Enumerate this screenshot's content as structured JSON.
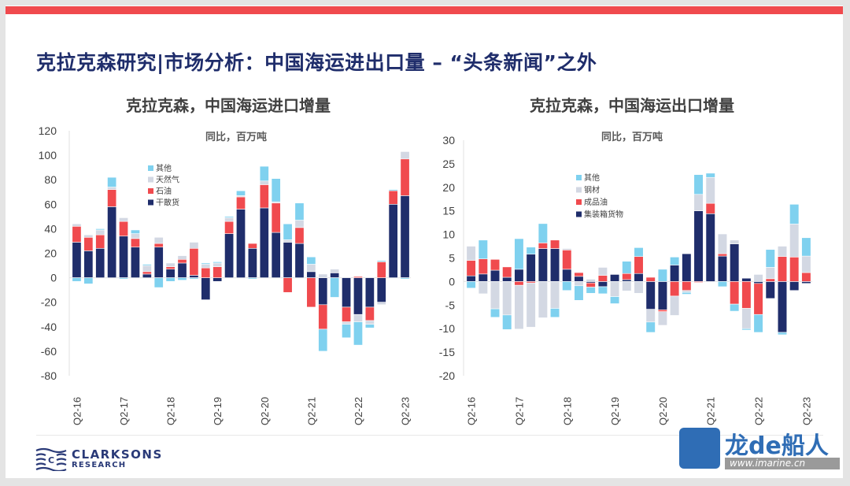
{
  "slide": {
    "title": "克拉克森研究|市场分析：中国海运进出口量 – “头条新闻”之外",
    "logo_text": "CLARKSONS",
    "logo_subtext": "RESEARCH",
    "watermark_text": "龙de船人",
    "watermark_url": "www.imarine.cn"
  },
  "colors": {
    "brand": "#1f2d6b",
    "accent_red": "#f04a4e",
    "navy": "#1f2d6b",
    "red": "#f04a4e",
    "grey": "#d3d8e3",
    "cyan": "#7fd1ef"
  },
  "chart_data": [
    {
      "type": "bar",
      "stacked": true,
      "title": "克拉克森，中国海运进口增量",
      "subtitle": "同比，百万吨",
      "ylim": [
        -80,
        120
      ],
      "yticks": [
        120,
        100,
        80,
        60,
        40,
        20,
        0,
        -20,
        -40,
        -60,
        -80
      ],
      "xtick_labels": [
        "Q2-16",
        "Q2-17",
        "Q2-18",
        "Q2-19",
        "Q2-20",
        "Q2-21",
        "Q2-22",
        "Q2-23"
      ],
      "legend_position": "upper-left-center",
      "grid": false,
      "series": [
        {
          "name": "干散货",
          "color": "#1f2d6b",
          "values": [
            29,
            22,
            24,
            58,
            34,
            25,
            3,
            25,
            7,
            12,
            2,
            -18,
            -3,
            36,
            56,
            24,
            57,
            37,
            29,
            28,
            5,
            -22,
            4,
            -24,
            -30,
            -24,
            -20,
            60,
            67
          ]
        },
        {
          "name": "石油",
          "color": "#f04a4e",
          "values": [
            13,
            11,
            11,
            14,
            12,
            7,
            2,
            3,
            2,
            3,
            22,
            8,
            9,
            10,
            10,
            4,
            19,
            24,
            -12,
            13,
            -24,
            -20,
            0,
            -12,
            1,
            -11,
            13,
            11,
            30
          ]
        },
        {
          "name": "天然气",
          "color": "#d3d8e3",
          "values": [
            2,
            2,
            4,
            2,
            3,
            4,
            5,
            5,
            3,
            3,
            5,
            3,
            3,
            3,
            1,
            0,
            3,
            1,
            2,
            6,
            6,
            3,
            3,
            -2,
            -6,
            -3,
            -2,
            0,
            6
          ]
        },
        {
          "name": "其他",
          "color": "#7fd1ef",
          "values": [
            -3,
            -5,
            1,
            8,
            -1,
            3,
            1,
            -8,
            -3,
            -2,
            -1,
            1,
            1,
            1,
            4,
            -1,
            12,
            19,
            13,
            14,
            6,
            -18,
            -16,
            -11,
            -19,
            -3,
            1,
            1,
            -1
          ]
        }
      ]
    },
    {
      "type": "bar",
      "stacked": true,
      "title": "克拉克森，中国海运出口增量",
      "subtitle": "同比，百万吨",
      "ylim": [
        -20,
        30
      ],
      "yticks": [
        30,
        25,
        20,
        15,
        10,
        5,
        0,
        -5,
        -10,
        -15,
        -20
      ],
      "xtick_labels": [
        "Q2-16",
        "Q2-17",
        "Q2-18",
        "Q2-19",
        "Q2-20",
        "Q2-21",
        "Q2-22",
        "Q2-23"
      ],
      "legend_position": "upper-left-center",
      "grid": false,
      "series": [
        {
          "name": "集装箱货物",
          "color": "#1f2d6b",
          "values": [
            1.2,
            1.6,
            2.4,
            0.9,
            2.6,
            5.8,
            7,
            7,
            2.6,
            1.1,
            -0.3,
            -1.1,
            1.5,
            0.4,
            1.7,
            -5.9,
            -6,
            3.5,
            5.9,
            15,
            14.4,
            5.4,
            8,
            0.7,
            -0.4,
            -3.6,
            -10.8,
            -1.9,
            -0.4
          ]
        },
        {
          "name": "成品油",
          "color": "#f04a4e",
          "values": [
            3.3,
            3.2,
            2.3,
            2.2,
            -0.8,
            -0.3,
            1.2,
            1.8,
            4.1,
            0.8,
            -0.9,
            1.3,
            0,
            1.3,
            3.6,
            0.9,
            -0.4,
            -3.1,
            -1.9,
            -0.2,
            2.2,
            0.5,
            -4.8,
            -5.7,
            -6.6,
            0.6,
            5.3,
            5.2,
            1.9
          ]
        },
        {
          "name": "钢材",
          "color": "#d3d8e3",
          "values": [
            3,
            -2.6,
            -5.8,
            -7.1,
            -9.3,
            -9.4,
            -7.7,
            -5.7,
            0.3,
            -0.9,
            0.5,
            1.7,
            -3.2,
            -2,
            -2.5,
            -2.7,
            -2.9,
            -4.1,
            -0.4,
            3.5,
            5.5,
            4.2,
            0.8,
            -4.3,
            1.5,
            2.4,
            2.2,
            7,
            3.5
          ]
        },
        {
          "name": "其他",
          "color": "#7fd1ef",
          "values": [
            -1.4,
            4,
            -1.8,
            -3.1,
            6.5,
            1.5,
            4.1,
            -1.9,
            -1.9,
            -3.1,
            -1.3,
            -1.5,
            -1.5,
            2.6,
            1.9,
            -2.2,
            2.6,
            1.7,
            -0.4,
            4.2,
            0.9,
            -1.1,
            -1.5,
            -0.3,
            -3.8,
            3.8,
            -0.5,
            4.2,
            3.9
          ]
        }
      ]
    }
  ]
}
